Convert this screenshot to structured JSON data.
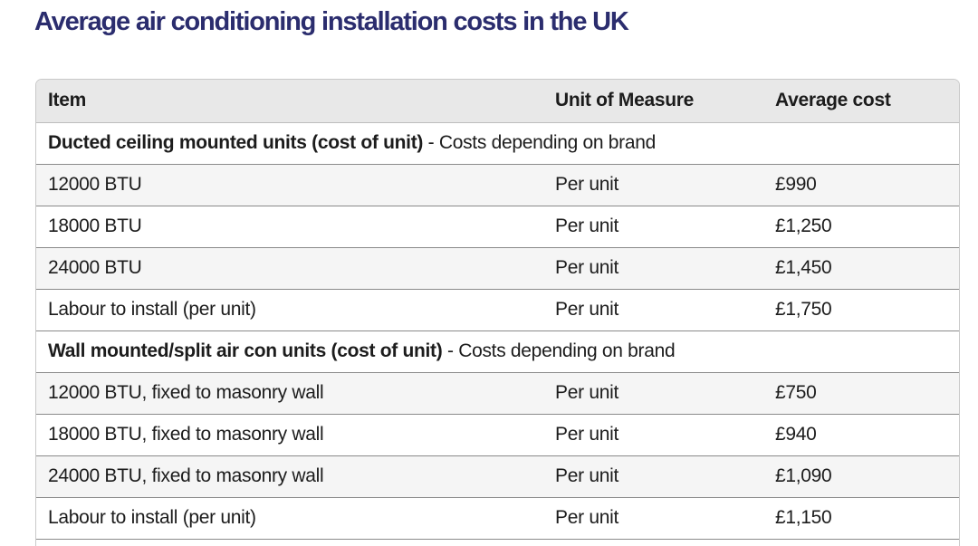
{
  "title": "Average air conditioning installation costs in the UK",
  "table": {
    "headers": [
      "Item",
      "Unit of Measure",
      "Average cost"
    ],
    "sections": [
      {
        "heading": "Ducted ceiling mounted units (cost of unit)",
        "note": " - Costs depending on brand",
        "rows": [
          {
            "item": "12000 BTU",
            "unit": "Per unit",
            "cost": "£990"
          },
          {
            "item": "18000 BTU",
            "unit": "Per unit",
            "cost": "£1,250"
          },
          {
            "item": "24000 BTU",
            "unit": "Per unit",
            "cost": "£1,450"
          },
          {
            "item": "Labour to install (per unit)",
            "unit": "Per unit",
            "cost": "£1,750"
          }
        ]
      },
      {
        "heading": "Wall mounted/split air con units (cost of unit)",
        "note": " - Costs depending on brand",
        "rows": [
          {
            "item": "12000 BTU, fixed to masonry wall",
            "unit": "Per unit",
            "cost": "£750"
          },
          {
            "item": "18000 BTU, fixed to masonry wall",
            "unit": "Per unit",
            "cost": "£940"
          },
          {
            "item": "24000 BTU, fixed to masonry wall",
            "unit": "Per unit",
            "cost": "£1,090"
          },
          {
            "item": "Labour to install (per unit)",
            "unit": "Per unit",
            "cost": "£1,150"
          }
        ]
      }
    ]
  }
}
